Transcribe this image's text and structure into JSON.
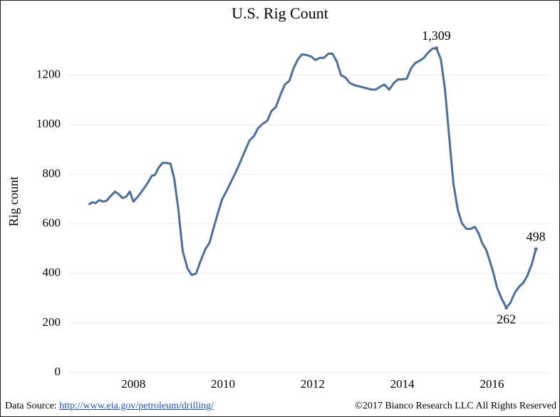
{
  "chart_data": {
    "type": "line",
    "title": "U.S. Rig Count",
    "ylabel": "Rig count",
    "x": [
      2007.0,
      2007.08,
      2007.16,
      2007.24,
      2007.32,
      2007.4,
      2007.48,
      2007.59,
      2007.68,
      2007.76,
      2007.84,
      2007.92,
      2008.0,
      2008.1,
      2008.22,
      2008.32,
      2008.41,
      2008.48,
      2008.56,
      2008.65,
      2008.73,
      2008.83,
      2008.91,
      2009.0,
      2009.1,
      2009.21,
      2009.3,
      2009.4,
      2009.49,
      2009.6,
      2009.7,
      2009.79,
      2009.89,
      2009.98,
      2010.08,
      2010.18,
      2010.27,
      2010.37,
      2010.48,
      2010.59,
      2010.69,
      2010.78,
      2010.88,
      2010.99,
      2011.08,
      2011.18,
      2011.29,
      2011.38,
      2011.48,
      2011.57,
      2011.67,
      2011.76,
      2011.87,
      2011.97,
      2012.06,
      2012.16,
      2012.25,
      2012.35,
      2012.44,
      2012.54,
      2012.63,
      2012.73,
      2012.83,
      2012.94,
      2013.06,
      2013.19,
      2013.32,
      2013.41,
      2013.51,
      2013.6,
      2013.71,
      2013.81,
      2013.9,
      2014.0,
      2014.1,
      2014.19,
      2014.29,
      2014.38,
      2014.48,
      2014.57,
      2014.67,
      2014.76,
      2014.86,
      2014.95,
      2015.05,
      2015.14,
      2015.24,
      2015.33,
      2015.43,
      2015.52,
      2015.62,
      2015.71,
      2015.79,
      2015.87,
      2015.95,
      2016.03,
      2016.11,
      2016.21,
      2016.32,
      2016.41,
      2016.51,
      2016.6,
      2016.7,
      2016.79,
      2016.89,
      2016.98
    ],
    "values": [
      678,
      687,
      684,
      696,
      690,
      693,
      710,
      730,
      719,
      704,
      710,
      730,
      690,
      710,
      739,
      765,
      794,
      797,
      826,
      846,
      846,
      843,
      783,
      664,
      490,
      420,
      394,
      400,
      446,
      496,
      525,
      583,
      646,
      699,
      733,
      771,
      803,
      843,
      890,
      936,
      954,
      986,
      1003,
      1017,
      1055,
      1072,
      1125,
      1162,
      1177,
      1226,
      1264,
      1284,
      1281,
      1275,
      1261,
      1270,
      1270,
      1287,
      1287,
      1255,
      1200,
      1191,
      1168,
      1159,
      1154,
      1148,
      1142,
      1142,
      1154,
      1162,
      1142,
      1168,
      1183,
      1183,
      1186,
      1226,
      1249,
      1258,
      1270,
      1290,
      1307,
      1309,
      1264,
      1148,
      945,
      762,
      655,
      603,
      580,
      580,
      588,
      559,
      519,
      496,
      452,
      403,
      345,
      301,
      262,
      281,
      322,
      345,
      362,
      391,
      438,
      498
    ],
    "value_labels": [
      null,
      null,
      null,
      null,
      null,
      null,
      null,
      null,
      null,
      null,
      null,
      null,
      null,
      null,
      null,
      null,
      null,
      null,
      null,
      null,
      null,
      null,
      null,
      null,
      null,
      null,
      null,
      null,
      null,
      null,
      null,
      null,
      null,
      null,
      null,
      null,
      null,
      null,
      null,
      null,
      null,
      null,
      null,
      null,
      null,
      null,
      null,
      null,
      null,
      null,
      null,
      null,
      null,
      null,
      null,
      null,
      null,
      null,
      null,
      null,
      null,
      null,
      null,
      null,
      null,
      null,
      null,
      null,
      null,
      null,
      null,
      null,
      null,
      null,
      null,
      null,
      null,
      null,
      null,
      null,
      null,
      "1,309",
      null,
      null,
      null,
      null,
      null,
      null,
      null,
      null,
      null,
      null,
      null,
      null,
      null,
      null,
      null,
      null,
      "262",
      null,
      null,
      null,
      null,
      null,
      null,
      "498"
    ],
    "color": "#4b6f9b",
    "xlim": [
      2006.55,
      2017.28
    ],
    "xticks": [
      2008,
      2010,
      2012,
      2014,
      2016
    ],
    "ylim": [
      -50,
      1400
    ],
    "yticks": [
      0,
      200,
      400,
      600,
      800,
      1000,
      1200
    ],
    "grid": true
  },
  "footer": {
    "source_label": "Data Source:",
    "source_link": "http://www.eia.gov/petroleum/drilling/",
    "copyright": "©2017 Bianco Research LLC  All Rights Reserved"
  }
}
